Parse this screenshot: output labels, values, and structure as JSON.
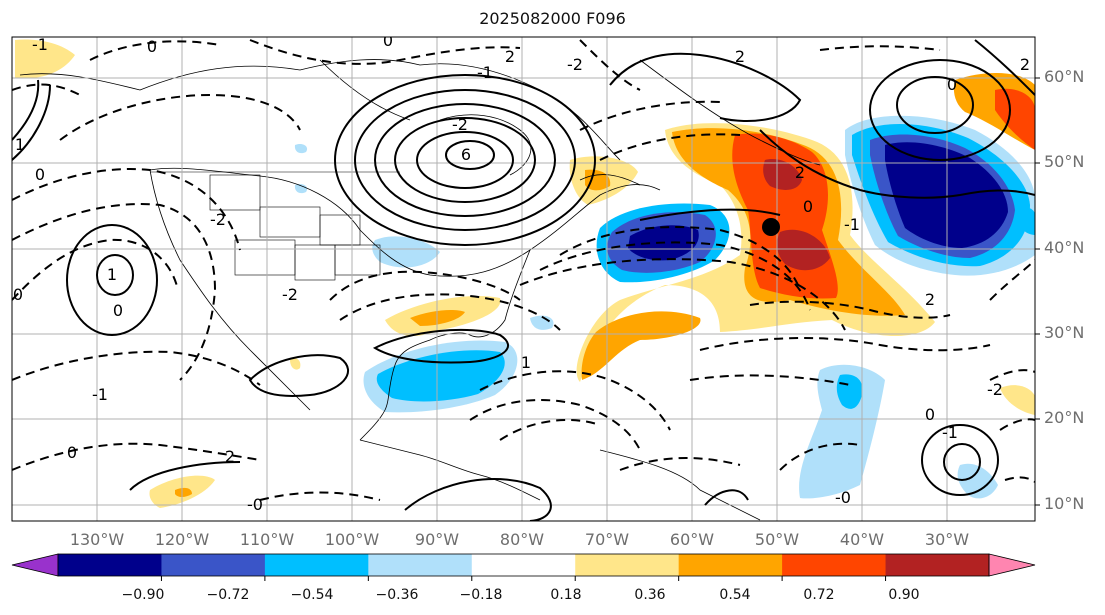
{
  "title": "2025082000 F096",
  "lat_labels": [
    "60°N",
    "50°N",
    "40°N",
    "30°N",
    "20°N",
    "10°N"
  ],
  "lon_labels": [
    "130°W",
    "120°W",
    "110°W",
    "100°W",
    "90°W",
    "80°W",
    "70°W",
    "60°W",
    "50°W",
    "40°W",
    "30°W"
  ],
  "colorbar": {
    "tick_labels": [
      "−0.90",
      "−0.72",
      "−0.54",
      "−0.36",
      "−0.18",
      "0.18",
      "0.36",
      "0.54",
      "0.72",
      "0.90"
    ],
    "colors": [
      "#9932cc",
      "#00008b",
      "#3a55c8",
      "#00bfff",
      "#b0e0fa",
      "#ffffff",
      "#ffe68a",
      "#ffa500",
      "#ff4500",
      "#b22222",
      "#ff85b0"
    ]
  },
  "contour_labels": [
    "0",
    "0",
    "2",
    "2",
    "-2",
    "-1",
    "-1",
    "1",
    "1",
    "0",
    "0",
    "-2",
    "-2",
    "6",
    "-2",
    "2",
    "-1",
    "0",
    "-1",
    "0",
    "0",
    "2",
    "1",
    "-1",
    "0",
    "-0",
    "-0",
    "0",
    "2",
    "-2",
    "2"
  ],
  "marker": "storm-center-dot"
}
